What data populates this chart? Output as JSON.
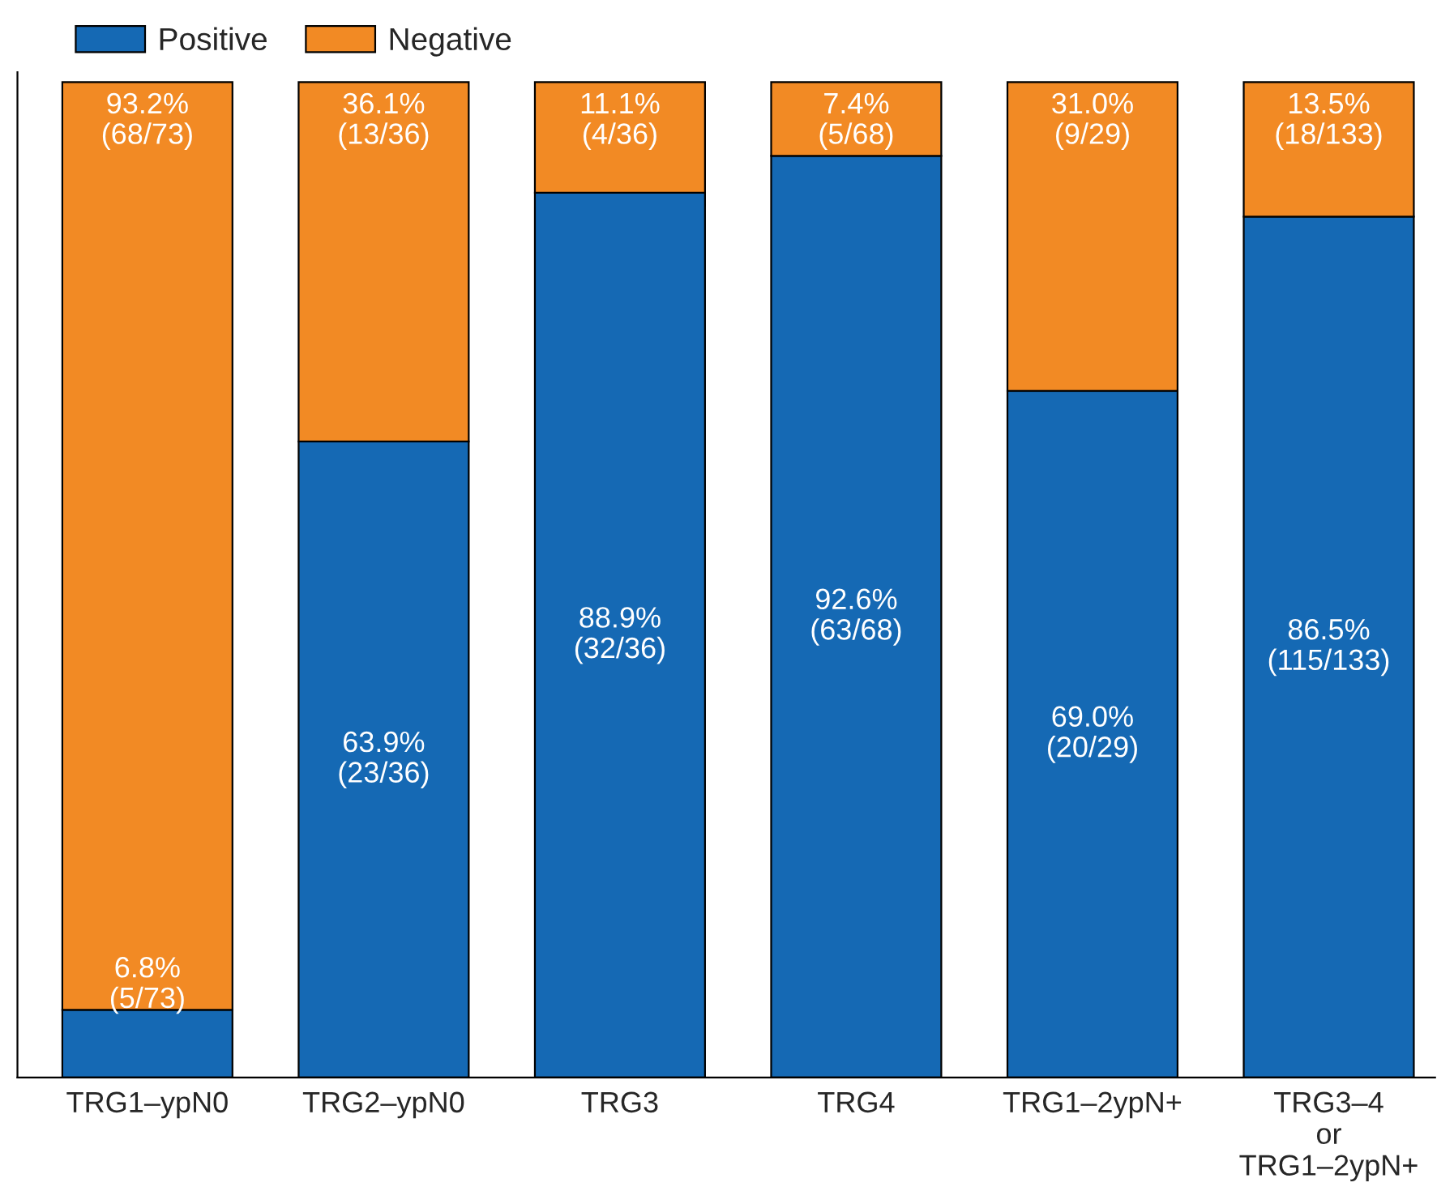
{
  "chart_data": {
    "type": "bar",
    "stacked": true,
    "legend": "top left",
    "grid": false,
    "categories": [
      "TRG1–ypN0",
      "TRG2–ypN0",
      "TRG3",
      "TRG4",
      "TRG1–2ypN+",
      "TRG3–4\nor\nTRG1–2ypN+"
    ],
    "series": [
      {
        "name": "Positive",
        "color": "#1569b4",
        "values": [
          6.8,
          63.9,
          88.9,
          92.6,
          69.0,
          86.5
        ],
        "value_labels": [
          "6.8%\n(5/73)",
          "63.9%\n(23/36)",
          "88.9%\n(32/36)",
          "92.6%\n(63/68)",
          "69.0%\n(20/29)",
          "86.5%\n(115/133)"
        ]
      },
      {
        "name": "Negative",
        "color": "#f28a24",
        "values": [
          93.2,
          36.1,
          11.1,
          7.4,
          31.0,
          13.5
        ],
        "value_labels": [
          "93.2%\n(68/73)",
          "36.1%\n(13/36)",
          "11.1%\n(4/36)",
          "7.4%\n(5/68)",
          "31.0%\n(9/29)",
          "13.5%\n(18/133)"
        ]
      }
    ],
    "tick_labels": "x"
  }
}
